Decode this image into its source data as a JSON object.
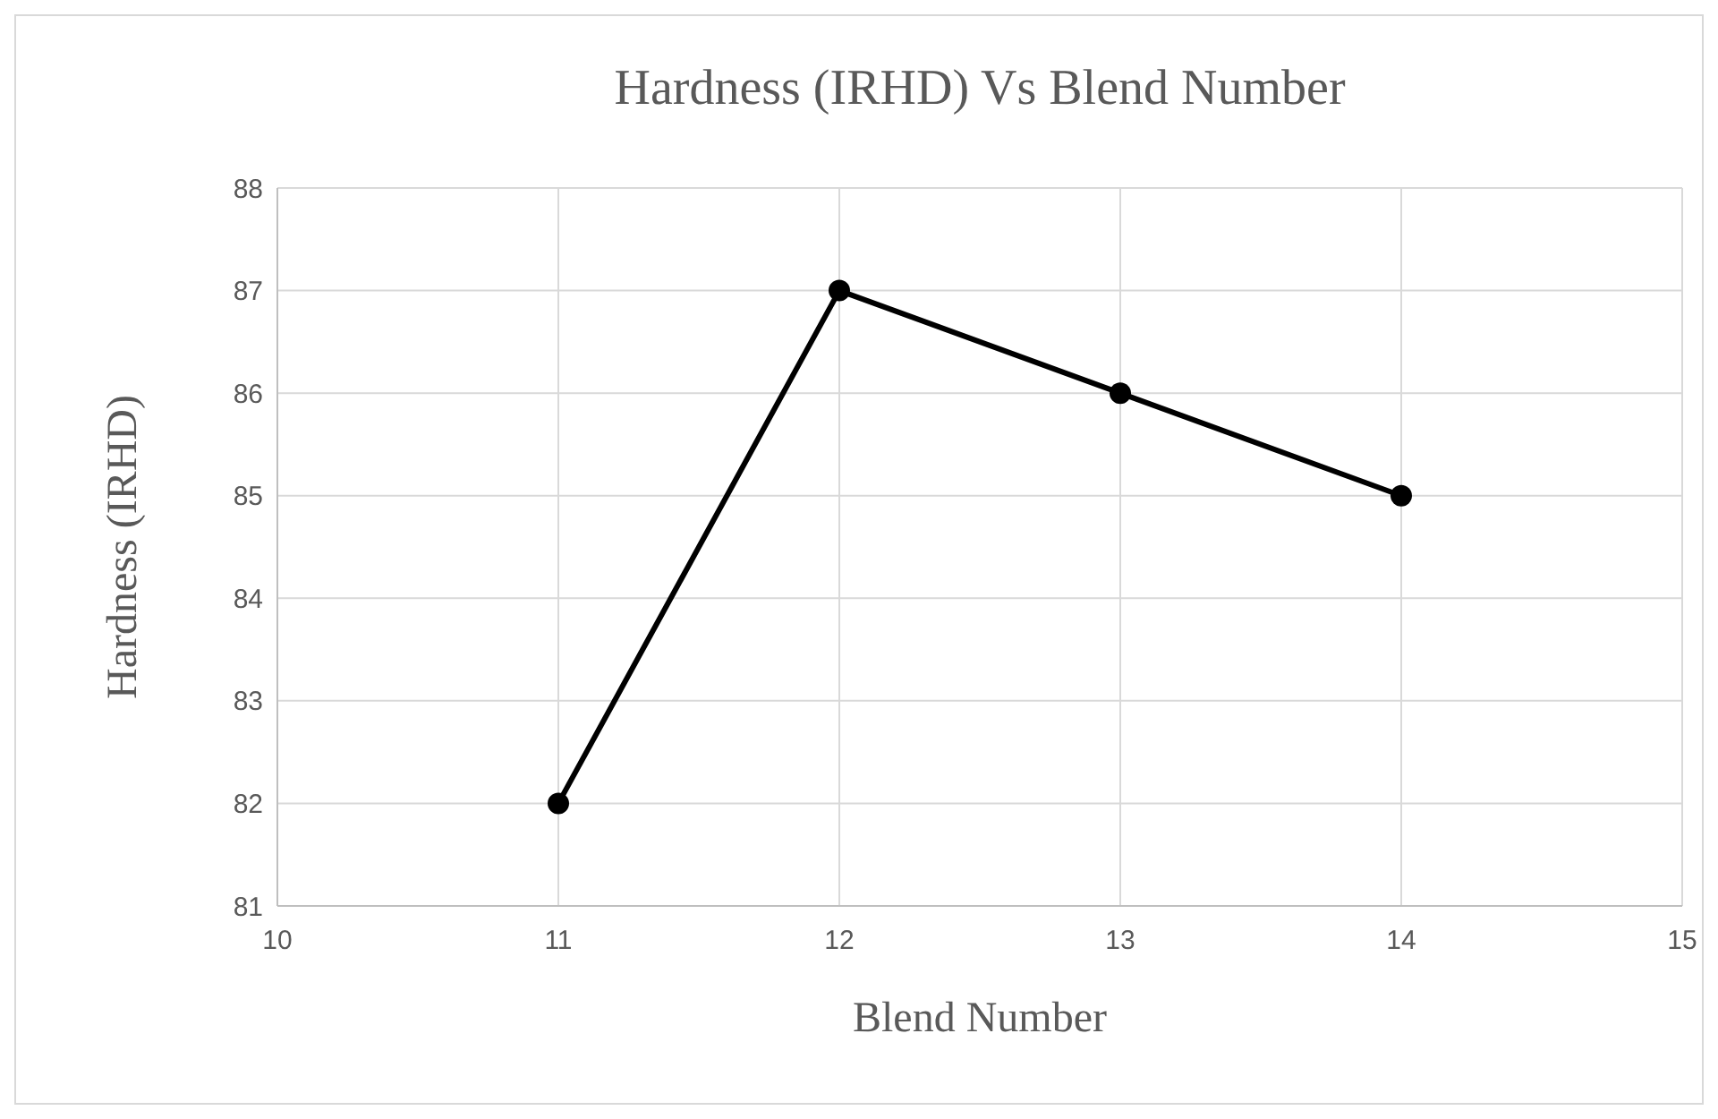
{
  "chart_data": {
    "type": "line",
    "title": "Hardness (IRHD) Vs Blend Number",
    "xlabel": "Blend Number",
    "ylabel": "Hardness (IRHD)",
    "x": [
      11,
      12,
      13,
      14
    ],
    "series": [
      {
        "color": "#000000",
        "values": [
          82,
          87,
          86,
          85
        ]
      }
    ],
    "xlim": [
      10,
      15
    ],
    "xticks": [
      10,
      11,
      12,
      13,
      14,
      15
    ],
    "ylim": [
      81,
      88
    ],
    "yticks": [
      81,
      82,
      83,
      84,
      85,
      86,
      87,
      88
    ],
    "grid": true,
    "marker": "circle",
    "line_style": "solid"
  }
}
